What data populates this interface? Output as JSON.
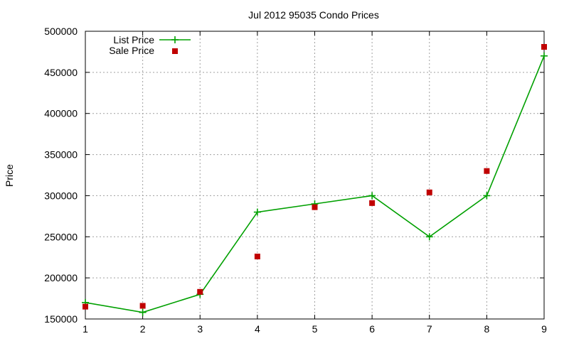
{
  "chart_data": {
    "type": "line",
    "title": "Jul 2012 95035 Condo Prices",
    "xlabel": "",
    "ylabel": "Price",
    "xlim": [
      1,
      9
    ],
    "ylim": [
      150000,
      500000
    ],
    "x_ticks": [
      "1",
      "2",
      "3",
      "4",
      "5",
      "6",
      "7",
      "8",
      "9"
    ],
    "y_ticks": [
      "150000",
      "200000",
      "250000",
      "300000",
      "350000",
      "400000",
      "450000",
      "500000"
    ],
    "grid": true,
    "legend_position": "top-left",
    "series": [
      {
        "name": "List Price",
        "style": "line-with-plus-markers",
        "color": "#00a000",
        "x": [
          1,
          2,
          3,
          4,
          5,
          6,
          7,
          8,
          9
        ],
        "y": [
          170000,
          158000,
          180000,
          280000,
          290000,
          300000,
          250000,
          300000,
          470000
        ]
      },
      {
        "name": "Sale Price",
        "style": "square-markers",
        "color": "#c00000",
        "x": [
          1,
          2,
          3,
          4,
          5,
          6,
          7,
          8,
          9
        ],
        "y": [
          165000,
          166000,
          183000,
          226000,
          286000,
          291000,
          304000,
          330000,
          481000
        ]
      }
    ]
  }
}
